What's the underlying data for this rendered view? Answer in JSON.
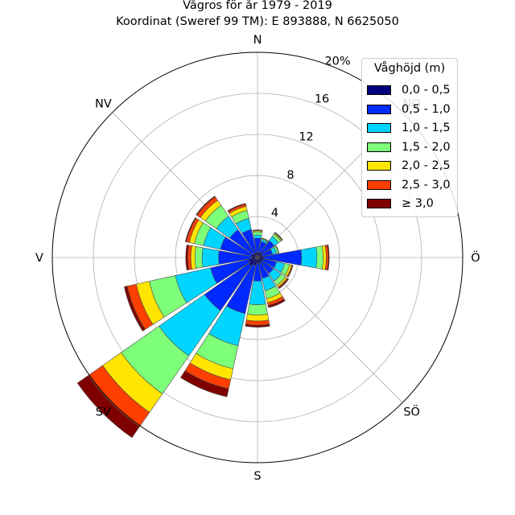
{
  "title": {
    "line1": "Vågros för år 1979 - 2019",
    "line2": "Koordinat (Sweref 99 TM): E 893888, N 6625050"
  },
  "chart_data": {
    "type": "polar-stacked-bar",
    "title": "Vågros för år 1979 - 2019",
    "subtitle": "Koordinat (Sweref 99 TM): E 893888, N 6625050",
    "r_unit": "%",
    "r_max": 20,
    "r_ticks": [
      {
        "value": 4,
        "label": "4"
      },
      {
        "value": 8,
        "label": "8"
      },
      {
        "value": 12,
        "label": "12"
      },
      {
        "value": 16,
        "label": "16"
      },
      {
        "value": 20,
        "label": "20%"
      }
    ],
    "directions": [
      "N",
      "NO",
      "Ö",
      "SÖ",
      "S",
      "SV",
      "V",
      "NV"
    ],
    "sector_width_deg": 22.5,
    "legend": {
      "title": "Våghöjd (m)",
      "placement": "upper-right",
      "entries": [
        {
          "label": "0,0 - 0,5",
          "color": "#00007f"
        },
        {
          "label": "0,5 - 1,0",
          "color": "#0029ff"
        },
        {
          "label": "1,0 - 1,5",
          "color": "#00d5ff"
        },
        {
          "label": "1,5 - 2,0",
          "color": "#7dff7a"
        },
        {
          "label": "2,0 - 2,5",
          "color": "#ffe500"
        },
        {
          "label": "2,5 - 3,0",
          "color": "#ff3f00"
        },
        {
          "label": "≥ 3,0",
          "color": "#7f0000"
        }
      ]
    },
    "series": [
      {
        "direction_deg": 0,
        "values": [
          0.5,
          1.4,
          0.3,
          0.3,
          0.1,
          0.05,
          0.05
        ]
      },
      {
        "direction_deg": 22.5,
        "values": [
          0.5,
          1.1,
          0.2,
          0.1,
          0.05,
          0.0,
          0.0
        ]
      },
      {
        "direction_deg": 45,
        "values": [
          0.6,
          1.4,
          0.5,
          0.3,
          0.1,
          0.05,
          0.05
        ]
      },
      {
        "direction_deg": 67.5,
        "values": [
          0.5,
          1.0,
          0.4,
          0.2,
          0.05,
          0.0,
          0.0
        ]
      },
      {
        "direction_deg": 90,
        "values": [
          0.6,
          3.7,
          1.5,
          0.6,
          0.3,
          0.2,
          0.1
        ]
      },
      {
        "direction_deg": 112.5,
        "values": [
          0.6,
          1.3,
          0.8,
          0.5,
          0.2,
          0.1,
          0.05
        ]
      },
      {
        "direction_deg": 135,
        "values": [
          0.6,
          1.3,
          0.9,
          0.5,
          0.2,
          0.1,
          0.1
        ]
      },
      {
        "direction_deg": 157.5,
        "values": [
          0.6,
          1.5,
          1.2,
          0.8,
          0.4,
          0.3,
          0.2
        ]
      },
      {
        "direction_deg": 180,
        "values": [
          0.6,
          1.7,
          2.3,
          1.0,
          0.6,
          0.4,
          0.2
        ]
      },
      {
        "direction_deg": 202.5,
        "values": [
          0.8,
          4.8,
          3.2,
          2.3,
          1.1,
          0.9,
          0.8
        ]
      },
      {
        "direction_deg": 225,
        "values": [
          1.0,
          5.3,
          5.4,
          4.5,
          2.2,
          1.7,
          1.3
        ]
      },
      {
        "direction_deg": 247.5,
        "values": [
          0.9,
          3.8,
          3.5,
          2.6,
          1.3,
          0.9,
          0.3
        ]
      },
      {
        "direction_deg": 270,
        "values": [
          0.6,
          3.2,
          1.6,
          0.7,
          0.4,
          0.3,
          0.2
        ]
      },
      {
        "direction_deg": 292.5,
        "values": [
          0.6,
          3.1,
          1.7,
          0.9,
          0.5,
          0.3,
          0.1
        ]
      },
      {
        "direction_deg": 315,
        "values": [
          0.5,
          2.8,
          1.6,
          1.3,
          0.6,
          0.4,
          0.1
        ]
      },
      {
        "direction_deg": 337.5,
        "values": [
          0.5,
          2.3,
          1.1,
          0.8,
          0.4,
          0.2,
          0.1
        ]
      }
    ]
  }
}
